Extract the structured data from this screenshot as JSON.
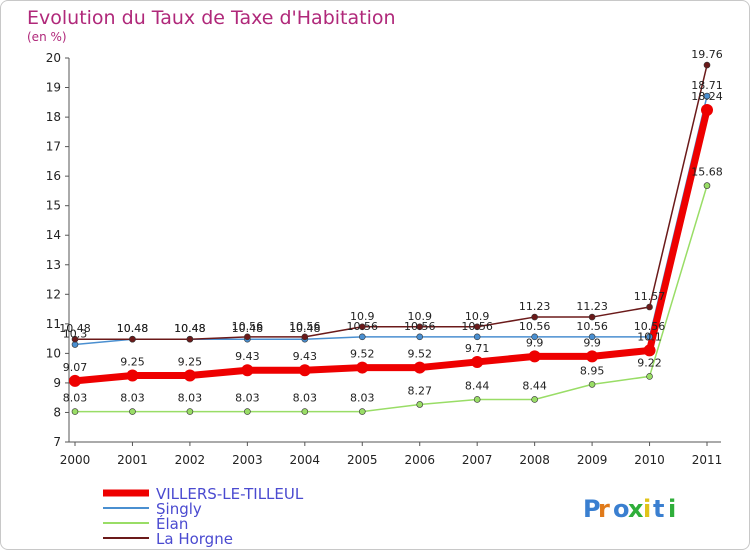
{
  "chart_data": {
    "type": "line",
    "title": "Evolution du Taux de Taxe d'Habitation",
    "subtitle": "(en %)",
    "xlabel": "",
    "ylabel": "",
    "x": [
      "2000",
      "2001",
      "2002",
      "2003",
      "2004",
      "2005",
      "2006",
      "2007",
      "2008",
      "2009",
      "2010",
      "2011"
    ],
    "ylim": [
      7,
      20
    ],
    "yticks": [
      "7",
      "8",
      "9",
      "10",
      "11",
      "12",
      "13",
      "14",
      "15",
      "16",
      "17",
      "18",
      "19",
      "20"
    ],
    "grid": false,
    "legend_position": "bottom-left",
    "series": [
      {
        "name": "VILLERS-LE-TILLEUL",
        "color": "#ee0000",
        "values": [
          9.07,
          9.25,
          9.25,
          9.43,
          9.43,
          9.52,
          9.52,
          9.71,
          9.9,
          9.9,
          10.1,
          18.24
        ],
        "labels": [
          "9.07",
          "9.25",
          "9.25",
          "9.43",
          "9.43",
          "9.52",
          "9.52",
          "9.71",
          "9.9",
          "9.9",
          "10.1",
          "18.24"
        ]
      },
      {
        "name": "Singly",
        "color": "#4a8fd0",
        "values": [
          10.3,
          10.48,
          10.48,
          10.48,
          10.48,
          10.56,
          10.56,
          10.56,
          10.56,
          10.56,
          10.56,
          18.71
        ],
        "labels": [
          "10.3",
          "10.48",
          "10.48",
          "10.48",
          "10.48",
          "10.56",
          "10.56",
          "10.56",
          "10.56",
          "10.56",
          "10.56",
          "18.71"
        ]
      },
      {
        "name": "Élan",
        "color": "#99dd66",
        "values": [
          8.03,
          8.03,
          8.03,
          8.03,
          8.03,
          8.03,
          8.27,
          8.44,
          8.44,
          8.95,
          9.22,
          15.68
        ],
        "labels": [
          "8.03",
          "8.03",
          "8.03",
          "8.03",
          "8.03",
          "8.03",
          "8.27",
          "8.44",
          "8.44",
          "8.95",
          "9.22",
          "15.68"
        ]
      },
      {
        "name": "La Horgne",
        "color": "#6b1a1a",
        "values": [
          10.48,
          10.48,
          10.48,
          10.56,
          10.56,
          10.9,
          10.9,
          10.9,
          11.23,
          11.23,
          11.57,
          19.76
        ],
        "labels": [
          "10.48",
          "10.48",
          "10.48",
          "10.56",
          "10.56",
          "10.9",
          "10.9",
          "10.9",
          "11.23",
          "11.23",
          "11.57",
          "19.76"
        ]
      }
    ]
  },
  "logo": {
    "text": "Proxiti"
  }
}
